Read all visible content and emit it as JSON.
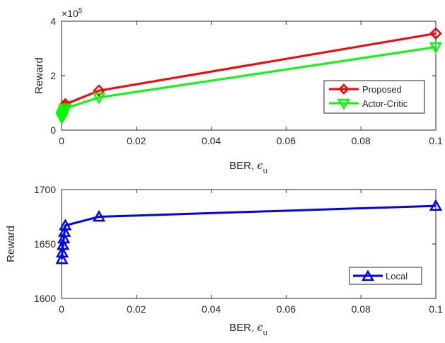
{
  "chart_data": [
    {
      "type": "line",
      "title": "",
      "xlabel": "BER, ",
      "xlabel_symbol": "ϵ",
      "xlabel_subscript": "u",
      "ylabel": "Reward",
      "y_exponent_label": "×10",
      "y_exponent_power": "5",
      "xlim": [
        0,
        0.1
      ],
      "ylim": [
        0,
        4
      ],
      "xticks": [
        0,
        0.02,
        0.04,
        0.06,
        0.08,
        0.1
      ],
      "xtick_labels": [
        "0",
        "0.02",
        "0.04",
        "0.06",
        "0.08",
        "0.1"
      ],
      "yticks": [
        0,
        2,
        4
      ],
      "ytick_labels": [
        "0",
        "2",
        "4"
      ],
      "grid": false,
      "legend_position": "lower-right",
      "series": [
        {
          "name": "Proposed",
          "color": "#ff0000",
          "marker": "diamond",
          "x": [
            0.0001,
            0.0002,
            0.0004,
            0.0006,
            0.0008,
            0.001,
            0.01,
            0.1
          ],
          "y": [
            0.62,
            0.68,
            0.74,
            0.8,
            0.88,
            0.95,
            1.45,
            3.55
          ]
        },
        {
          "name": "Actor-Critic",
          "color": "#00ff00",
          "marker": "triangle-down",
          "x": [
            0.0001,
            0.0002,
            0.0004,
            0.0006,
            0.0008,
            0.001,
            0.01,
            0.1
          ],
          "y": [
            0.45,
            0.52,
            0.58,
            0.64,
            0.72,
            0.8,
            1.2,
            3.05
          ]
        }
      ]
    },
    {
      "type": "line",
      "title": "",
      "xlabel": "BER, ",
      "xlabel_symbol": "ϵ",
      "xlabel_subscript": "u",
      "ylabel": "Reward",
      "xlim": [
        0,
        0.1
      ],
      "ylim": [
        1600,
        1700
      ],
      "xticks": [
        0,
        0.02,
        0.04,
        0.06,
        0.08,
        0.1
      ],
      "xtick_labels": [
        "0",
        "0.02",
        "0.04",
        "0.06",
        "0.08",
        "0.1"
      ],
      "yticks": [
        1600,
        1650,
        1700
      ],
      "ytick_labels": [
        "1600",
        "1650",
        "1700"
      ],
      "grid": false,
      "legend_position": "lower-right",
      "series": [
        {
          "name": "Local",
          "color": "#0000ff",
          "marker": "triangle-up",
          "x": [
            0.0001,
            0.0002,
            0.0004,
            0.0006,
            0.0008,
            0.001,
            0.01,
            0.1
          ],
          "y": [
            1636,
            1642,
            1649,
            1655,
            1661,
            1667,
            1675,
            1685
          ]
        }
      ]
    }
  ]
}
